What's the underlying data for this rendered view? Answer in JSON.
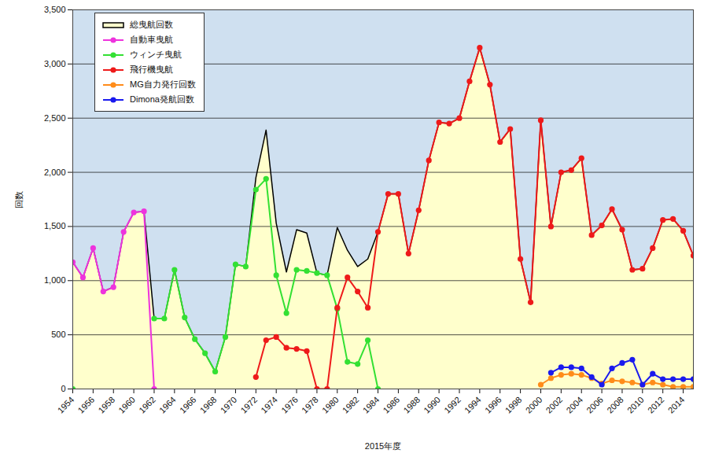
{
  "chart_data": {
    "type": "line",
    "x_label": "2015年度",
    "y_label": "回数",
    "x": [
      1954,
      1955,
      1956,
      1957,
      1958,
      1959,
      1960,
      1961,
      1962,
      1963,
      1964,
      1965,
      1966,
      1967,
      1968,
      1969,
      1970,
      1971,
      1972,
      1973,
      1974,
      1975,
      1976,
      1977,
      1978,
      1979,
      1980,
      1981,
      1982,
      1983,
      1984,
      1985,
      1986,
      1987,
      1988,
      1989,
      1990,
      1991,
      1992,
      1993,
      1994,
      1995,
      1996,
      1997,
      1998,
      1999,
      2000,
      2001,
      2002,
      2003,
      2004,
      2005,
      2006,
      2007,
      2008,
      2009,
      2010,
      2011,
      2012,
      2013,
      2014,
      2015
    ],
    "xlim": [
      1954,
      2015
    ],
    "xticks": [
      1954,
      1956,
      1958,
      1960,
      1962,
      1964,
      1966,
      1968,
      1970,
      1972,
      1974,
      1976,
      1978,
      1980,
      1982,
      1984,
      1986,
      1988,
      1990,
      1992,
      1994,
      1996,
      1998,
      2000,
      2002,
      2004,
      2006,
      2008,
      2010,
      2012,
      2014
    ],
    "ylim": [
      0,
      3500
    ],
    "yticks": [
      0,
      500,
      {
        "value": 1000,
        "label": "1,000"
      },
      {
        "value": 1500,
        "label": "1,500"
      },
      {
        "value": 2000,
        "label": "2,000"
      },
      {
        "value": 2500,
        "label": "2,500"
      },
      {
        "value": 3000,
        "label": "3,000"
      },
      {
        "value": 3500,
        "label": "3,500"
      }
    ],
    "grid": true,
    "legend": "top-left",
    "series": [
      {
        "name": "総曳航回数",
        "type": "area",
        "color": "#000000",
        "line_style": "solid",
        "values": [
          1170,
          1030,
          1300,
          900,
          940,
          1450,
          1630,
          1640,
          650,
          650,
          1100,
          660,
          460,
          330,
          160,
          480,
          1150,
          1130,
          1950,
          2390,
          1530,
          1080,
          1470,
          1440,
          1070,
          1050,
          1490,
          1280,
          1130,
          1200,
          1450,
          1800,
          1800,
          1250,
          1650,
          2110,
          2460,
          2450,
          2500,
          2840,
          3150,
          2810,
          2280,
          2400,
          1200,
          800,
          2480,
          1500,
          2000,
          2020,
          2130,
          1420,
          1510,
          1660,
          1470,
          1100,
          1110,
          1300,
          1560,
          1570,
          1460,
          1230
        ]
      },
      {
        "name": "自動車曳航",
        "type": "line",
        "color": "#ee33dd",
        "marker": "circle",
        "values": [
          1170,
          1030,
          1300,
          900,
          940,
          1450,
          1630,
          1640,
          0,
          null,
          null,
          null,
          null,
          null,
          null,
          null,
          null,
          null,
          null,
          null,
          null,
          null,
          null,
          null,
          null,
          null,
          null,
          null,
          null,
          null,
          null,
          null,
          null,
          null,
          null,
          null,
          null,
          null,
          null,
          null,
          null,
          null,
          null,
          null,
          null,
          null,
          null,
          null,
          null,
          null,
          null,
          null,
          null,
          null,
          null,
          null,
          null,
          null,
          null,
          null,
          null,
          null
        ]
      },
      {
        "name": "ウィンチ曳航",
        "type": "line",
        "color": "#33e033",
        "marker": "circle",
        "values": [
          0,
          null,
          null,
          null,
          null,
          null,
          null,
          null,
          650,
          650,
          1100,
          660,
          460,
          330,
          160,
          480,
          1150,
          1130,
          1840,
          1940,
          1050,
          700,
          1100,
          1090,
          1070,
          1050,
          740,
          250,
          230,
          450,
          0,
          null,
          null,
          null,
          null,
          null,
          null,
          null,
          null,
          null,
          null,
          null,
          null,
          null,
          null,
          null,
          null,
          null,
          null,
          null,
          null,
          null,
          null,
          null,
          null,
          null,
          null,
          null,
          null,
          null,
          null,
          null
        ]
      },
      {
        "name": "飛行機曳航",
        "type": "line",
        "color": "#ee1a1a",
        "marker": "circle",
        "values": [
          null,
          null,
          null,
          null,
          null,
          null,
          null,
          null,
          null,
          null,
          null,
          null,
          null,
          null,
          null,
          null,
          null,
          null,
          110,
          450,
          480,
          380,
          370,
          350,
          0,
          0,
          750,
          1030,
          900,
          750,
          1450,
          1800,
          1800,
          1250,
          1650,
          2110,
          2460,
          2450,
          2500,
          2840,
          3150,
          2810,
          2280,
          2400,
          1200,
          800,
          2480,
          1500,
          2000,
          2020,
          2130,
          1420,
          1510,
          1660,
          1470,
          1100,
          1110,
          1300,
          1560,
          1570,
          1460,
          1230
        ]
      },
      {
        "name": "MG自力発行回数",
        "type": "line",
        "color": "#ff8c1a",
        "marker": "circle",
        "values": [
          null,
          null,
          null,
          null,
          null,
          null,
          null,
          null,
          null,
          null,
          null,
          null,
          null,
          null,
          null,
          null,
          null,
          null,
          null,
          null,
          null,
          null,
          null,
          null,
          null,
          null,
          null,
          null,
          null,
          null,
          null,
          null,
          null,
          null,
          null,
          null,
          null,
          null,
          null,
          null,
          null,
          null,
          null,
          null,
          null,
          null,
          40,
          100,
          130,
          140,
          130,
          100,
          50,
          80,
          70,
          60,
          40,
          60,
          40,
          20,
          20,
          20
        ]
      },
      {
        "name": "Dimona発航回数",
        "type": "line",
        "color": "#1a1aee",
        "marker": "circle",
        "values": [
          null,
          null,
          null,
          null,
          null,
          null,
          null,
          null,
          null,
          null,
          null,
          null,
          null,
          null,
          null,
          null,
          null,
          null,
          null,
          null,
          null,
          null,
          null,
          null,
          null,
          null,
          null,
          null,
          null,
          null,
          null,
          null,
          null,
          null,
          null,
          null,
          null,
          null,
          null,
          null,
          null,
          null,
          null,
          null,
          null,
          null,
          null,
          150,
          200,
          200,
          190,
          110,
          40,
          190,
          240,
          270,
          40,
          140,
          90,
          90,
          90,
          90
        ]
      }
    ]
  }
}
